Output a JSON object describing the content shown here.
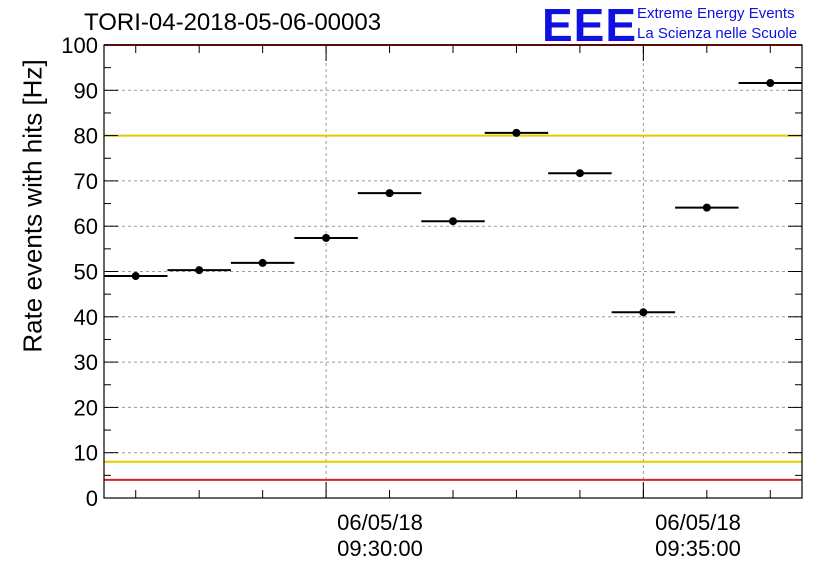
{
  "chart_data": {
    "type": "scatter",
    "title": "TORI-04-2018-05-06-00003",
    "xlabel": "",
    "ylabel": "Rate events with hits [Hz]",
    "ylim": [
      0,
      100
    ],
    "yticks": [
      0,
      10,
      20,
      30,
      40,
      50,
      60,
      70,
      80,
      90,
      100
    ],
    "xlim": [
      "09:26:30",
      "09:37:30"
    ],
    "xtick_labels": [
      {
        "date": "06/05/18",
        "time": "09:30:00"
      },
      {
        "date": "06/05/18",
        "time": "09:35:00"
      }
    ],
    "bin_width_seconds": 60,
    "series": [
      {
        "x": [
          "09:27:00",
          "09:28:00",
          "09:29:00",
          "09:30:00",
          "09:31:00",
          "09:32:00",
          "09:33:00",
          "09:34:00",
          "09:35:00",
          "09:36:00",
          "09:37:00"
        ],
        "values": [
          49.0,
          50.3,
          51.9,
          57.4,
          67.3,
          61.1,
          80.6,
          71.7,
          41.0,
          64.1,
          91.6
        ]
      }
    ],
    "reference_lines": [
      {
        "y": 100,
        "color": "#e02020"
      },
      {
        "y": 80,
        "color": "#e8c800"
      },
      {
        "y": 8,
        "color": "#e8c800"
      },
      {
        "y": 4,
        "color": "#e02020"
      }
    ],
    "grid": true
  },
  "logo": {
    "mark": "EEE",
    "line1": "Extreme Energy Events",
    "line2": "La Scienza nelle Scuole"
  }
}
